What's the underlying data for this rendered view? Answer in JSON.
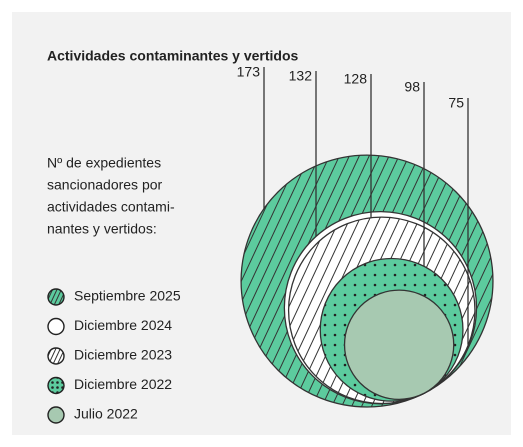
{
  "chart_data": {
    "type": "nested-circles",
    "title": "Actividades contaminantes y vertidos",
    "subtitle": [
      "Nº de expedientes",
      "sancionadores por",
      "actividades contami-",
      "nantes y vertidos:"
    ],
    "series": [
      {
        "name": "Septiembre 2025",
        "value": 173,
        "color": "#5ccb9e",
        "pattern": "hatch"
      },
      {
        "name": "Diciembre 2024",
        "value": 132,
        "color": "#ffffff",
        "pattern": "none"
      },
      {
        "name": "Diciembre 2023",
        "value": 128,
        "color": "#ffffff",
        "pattern": "hatch"
      },
      {
        "name": "Diciembre 2022",
        "value": 98,
        "color": "#5ccb9e",
        "pattern": "dots"
      },
      {
        "name": "Julio 2022",
        "value": 75,
        "color": "#a7c9b1",
        "pattern": "none"
      }
    ]
  }
}
